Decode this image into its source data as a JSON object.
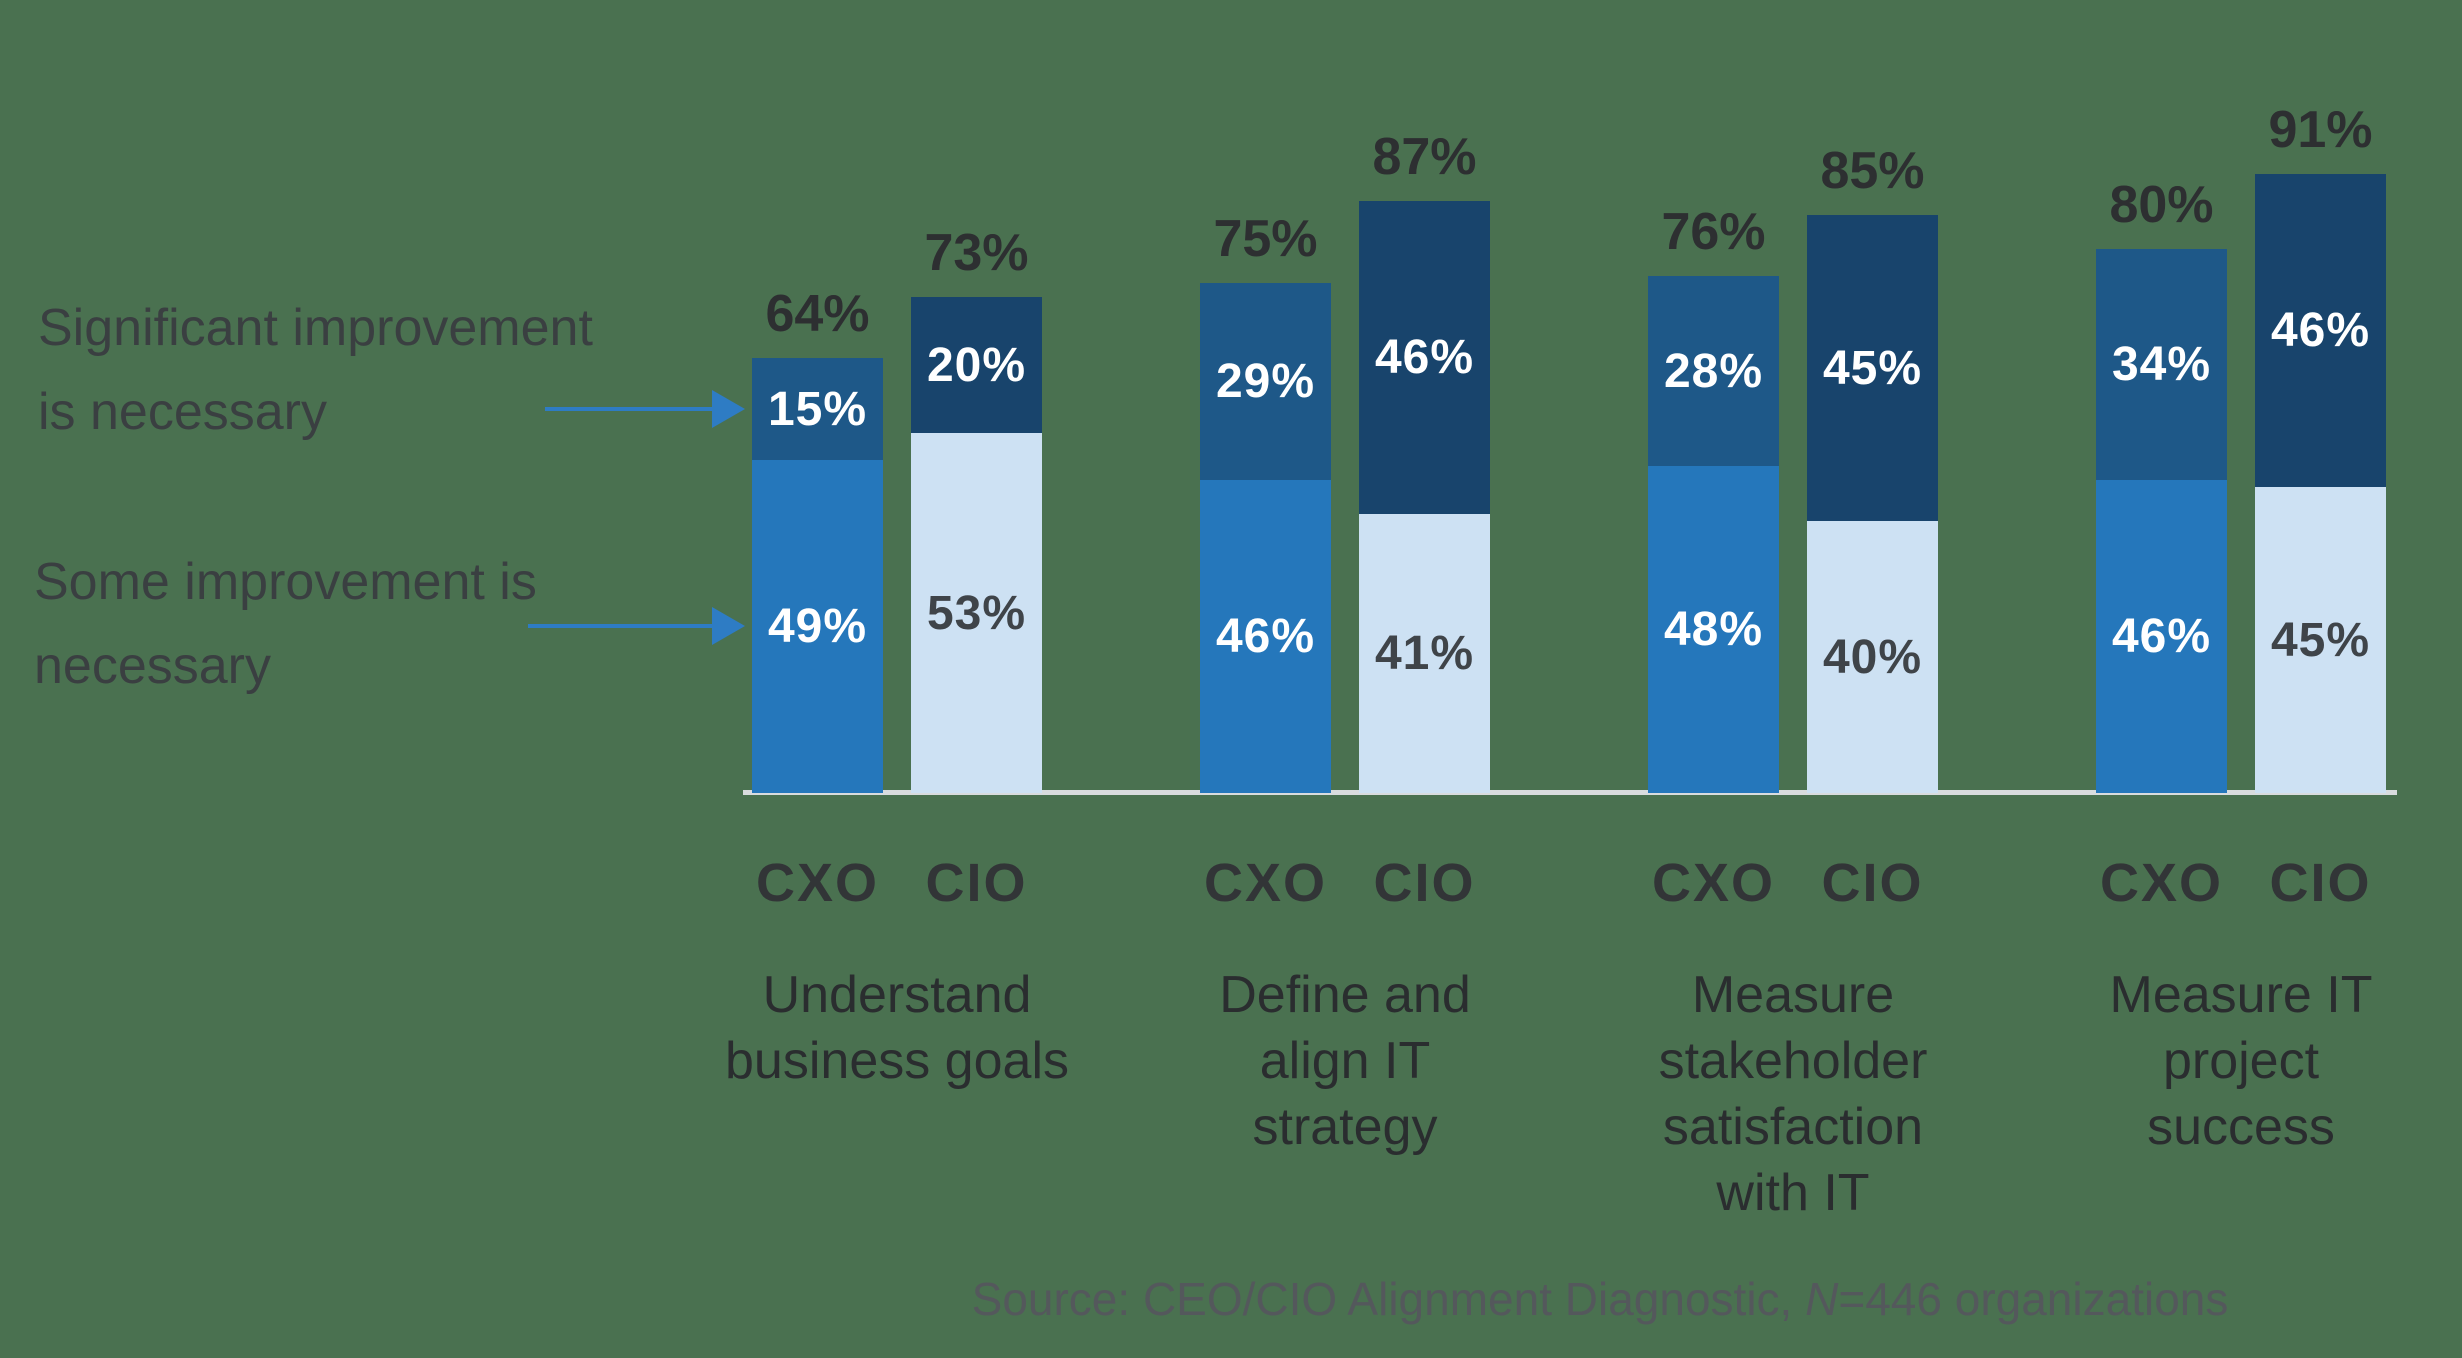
{
  "background_color": "#4A7150",
  "legend": {
    "significant": {
      "lines": [
        "Significant improvement",
        "is necessary"
      ]
    },
    "some": {
      "lines": [
        "Some improvement is",
        "necessary"
      ]
    }
  },
  "source": {
    "prefix": "Source: CEO/CIO Alignment Diagnostic, ",
    "n": "N",
    "suffix": "=446 organizations"
  },
  "chart_data": {
    "type": "bar",
    "stacked": true,
    "value_unit": "%",
    "ylim": [
      0,
      100
    ],
    "grid": false,
    "legend_position": "left",
    "series": [
      {
        "id": "significant",
        "label": "Significant improvement is necessary"
      },
      {
        "id": "some",
        "label": "Some improvement is necessary"
      }
    ],
    "colors": {
      "cxo_significant": "#1E5888",
      "cxo_some": "#2577BB",
      "cio_significant": "#18446C",
      "cio_some": "#CDE1F3",
      "axis_line": "#D9DCDE",
      "arrow": "#2E7CC4",
      "label_on_dark": "#FFFFFF",
      "label_on_light": "#3F4449",
      "total_label": "#2D2F31",
      "background": "#4A7150"
    },
    "groups": [
      {
        "category": "Understand business goals",
        "category_lines": [
          "Understand",
          "business goals"
        ],
        "bars": [
          {
            "who": "CXO",
            "total": 64,
            "significant": 15,
            "some": 49
          },
          {
            "who": "CIO",
            "total": 73,
            "significant": 20,
            "some": 53
          }
        ]
      },
      {
        "category": "Define and align IT strategy",
        "category_lines": [
          "Define and",
          "align IT",
          "strategy"
        ],
        "bars": [
          {
            "who": "CXO",
            "total": 75,
            "significant": 29,
            "some": 46
          },
          {
            "who": "CIO",
            "total": 87,
            "significant": 46,
            "some": 41
          }
        ]
      },
      {
        "category": "Measure stakeholder satisfaction with IT",
        "category_lines": [
          "Measure",
          "stakeholder",
          "satisfaction",
          "with IT"
        ],
        "bars": [
          {
            "who": "CXO",
            "total": 76,
            "significant": 28,
            "some": 48
          },
          {
            "who": "CIO",
            "total": 85,
            "significant": 45,
            "some": 40
          }
        ]
      },
      {
        "category": "Measure IT project success",
        "category_lines": [
          "Measure IT",
          "project",
          "success"
        ],
        "bars": [
          {
            "who": "CXO",
            "total": 80,
            "significant": 34,
            "some": 46
          },
          {
            "who": "CIO",
            "total": 91,
            "significant": 46,
            "some": 45
          }
        ]
      }
    ]
  }
}
